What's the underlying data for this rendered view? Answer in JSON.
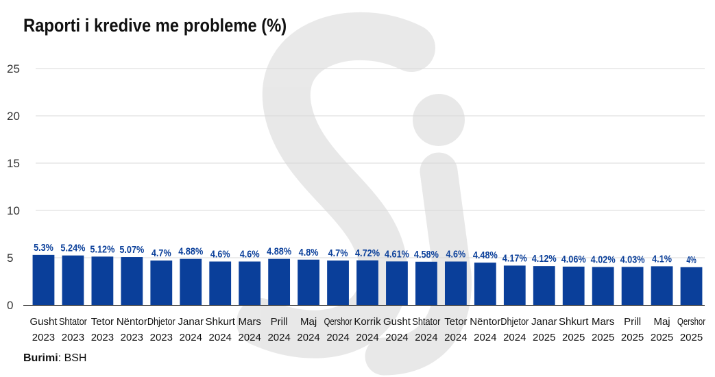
{
  "title": "Raporti i kredive me probleme (%)",
  "source": {
    "label": "Burimi",
    "separator": ": ",
    "value": "BSH"
  },
  "colors": {
    "bar": "#0a3f9a",
    "label": "#0a3f9a",
    "grid": "#d9d9d9",
    "axis": "#333333",
    "text": "#111111",
    "watermark": "#efefef"
  },
  "chart_data": {
    "type": "bar",
    "title": "Raporti i kredive me probleme (%)",
    "xlabel": "",
    "ylabel": "",
    "ylim": [
      0,
      25
    ],
    "yticks": [
      0,
      5,
      10,
      15,
      20,
      25
    ],
    "grid": true,
    "legend": "none",
    "categories": [
      [
        "Gusht",
        "2023"
      ],
      [
        "Shtator",
        "2023"
      ],
      [
        "Tetor",
        "2023"
      ],
      [
        "Nëntor",
        "2023"
      ],
      [
        "Dhjetor",
        "2023"
      ],
      [
        "Janar",
        "2024"
      ],
      [
        "Shkurt",
        "2024"
      ],
      [
        "Mars",
        "2024"
      ],
      [
        "Prill",
        "2024"
      ],
      [
        "Maj",
        "2024"
      ],
      [
        "Qershor",
        "2024"
      ],
      [
        "Korrik",
        "2024"
      ],
      [
        "Gusht",
        "2024"
      ],
      [
        "Shtator",
        "2024"
      ],
      [
        "Tetor",
        "2024"
      ],
      [
        "Nëntor",
        "2024"
      ],
      [
        "Dhjetor",
        "2024"
      ],
      [
        "Janar",
        "2025"
      ],
      [
        "Shkurt",
        "2025"
      ],
      [
        "Mars",
        "2025"
      ],
      [
        "Prill",
        "2025"
      ],
      [
        "Maj",
        "2025"
      ],
      [
        "Qershor",
        "2025"
      ]
    ],
    "values": [
      5.3,
      5.24,
      5.12,
      5.07,
      4.7,
      4.88,
      4.6,
      4.6,
      4.88,
      4.8,
      4.7,
      4.72,
      4.61,
      4.58,
      4.6,
      4.48,
      4.17,
      4.12,
      4.06,
      4.02,
      4.03,
      4.1,
      4.0
    ],
    "labels": [
      "5.3%",
      "5.24%",
      "5.12%",
      "5.07%",
      "4.7%",
      "4.88%",
      "4.6%",
      "4.6%",
      "4.88%",
      "4.8%",
      "4.7%",
      "4.72%",
      "4.61%",
      "4.58%",
      "4.6%",
      "4.48%",
      "4.17%",
      "4.12%",
      "4.06%",
      "4.02%",
      "4.03%",
      "4.1%",
      "4%"
    ]
  }
}
